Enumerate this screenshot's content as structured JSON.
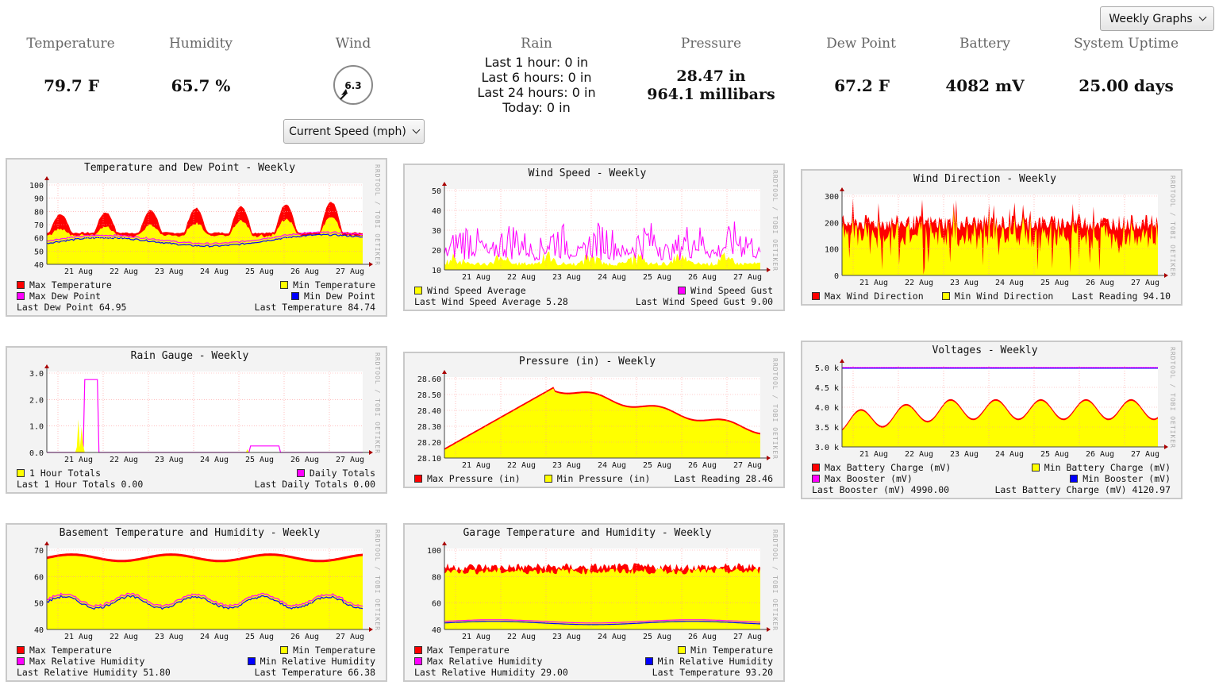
{
  "header": {
    "graphs_select": "Weekly Graphs",
    "wind_select": "Current Speed (mph)"
  },
  "stats": {
    "temperature": {
      "label": "Temperature",
      "value": "79.7 F"
    },
    "humidity": {
      "label": "Humidity",
      "value": "65.7 %"
    },
    "wind": {
      "label": "Wind",
      "value": "6.3"
    },
    "rain": {
      "label": "Rain",
      "lines": [
        "Last 1 hour: 0 in",
        "Last 6 hours: 0 in",
        "Last 24 hours: 0 in",
        "Today: 0 in"
      ]
    },
    "pressure": {
      "label": "Pressure",
      "lines": [
        "28.47 in",
        "964.1 millibars"
      ]
    },
    "dew_point": {
      "label": "Dew Point",
      "value": "67.2 F"
    },
    "battery": {
      "label": "Battery",
      "value": "4082 mV"
    },
    "uptime": {
      "label": "System Uptime",
      "value": "25.00 days"
    }
  },
  "colors": {
    "red": "#ff0000",
    "yellow": "#ffff00",
    "magenta": "#ff00ff",
    "blue": "#0000ff",
    "grid": "#ff9999"
  },
  "x_ticks": [
    "21 Aug",
    "22 Aug",
    "23 Aug",
    "24 Aug",
    "25 Aug",
    "26 Aug",
    "27 Aug"
  ],
  "watermark": "RRDTOOL / TOBI OETIKER",
  "graphs": [
    {
      "id": "temp",
      "title": "Temperature and Dew Point - Weekly",
      "y_ticks": [
        "100",
        "90",
        "80",
        "70",
        "60",
        "50",
        "40"
      ],
      "legend": [
        [
          {
            "c": "red",
            "t": "Max Temperature"
          },
          {
            "c": "yellow",
            "t": "Min Temperature"
          }
        ],
        [
          {
            "c": "magenta",
            "t": "Max Dew Point"
          },
          {
            "c": "blue",
            "t": "Min Dew Point"
          }
        ],
        [
          {
            "t": "Last Dew Point 64.95"
          },
          {
            "t": "Last Temperature 84.74"
          }
        ]
      ]
    },
    {
      "id": "windspeed",
      "title": "Wind Speed - Weekly",
      "y_ticks": [
        "50",
        "40",
        "30",
        "20",
        "10"
      ],
      "legend": [
        [
          {
            "c": "yellow",
            "t": "Wind Speed Average"
          },
          {
            "c": "magenta",
            "t": "Wind Speed Gust"
          }
        ],
        [
          {
            "t": "Last Wind Speed Average 5.28"
          },
          {
            "t": "Last Wind Speed Gust 9.00"
          }
        ]
      ]
    },
    {
      "id": "winddir",
      "title": "Wind Direction - Weekly",
      "y_ticks": [
        "300",
        "200",
        "100",
        "0"
      ],
      "legend": [
        [
          {
            "c": "red",
            "t": "Max Wind Direction"
          },
          {
            "c": "yellow",
            "t": "Min Wind Direction"
          },
          {
            "t": "Last Reading 94.10"
          }
        ]
      ]
    },
    {
      "id": "rain",
      "title": "Rain Gauge - Weekly",
      "y_ticks": [
        "3.0",
        "2.0",
        "1.0",
        "0.0"
      ],
      "legend": [
        [
          {
            "c": "yellow",
            "t": "1 Hour Totals"
          },
          {
            "c": "magenta",
            "t": "Daily Totals"
          }
        ],
        [
          {
            "t": "Last 1 Hour Totals 0.00"
          },
          {
            "t": "Last Daily Totals 0.00"
          }
        ]
      ]
    },
    {
      "id": "pressure",
      "title": "Pressure (in) - Weekly",
      "y_ticks": [
        "28.60",
        "28.50",
        "28.40",
        "28.30",
        "28.20",
        "28.10"
      ],
      "legend": [
        [
          {
            "c": "red",
            "t": "Max Pressure (in)"
          },
          {
            "c": "yellow",
            "t": "Min Pressure (in)"
          },
          {
            "t": "Last Reading 28.46"
          }
        ]
      ]
    },
    {
      "id": "voltages",
      "title": "Voltages - Weekly",
      "y_ticks": [
        "5.0 k",
        "4.5 k",
        "4.0 k",
        "3.5 k",
        "3.0 k"
      ],
      "legend": [
        [
          {
            "c": "red",
            "t": "Max Battery Charge (mV)"
          },
          {
            "c": "yellow",
            "t": "Min Battery Charge (mV)"
          }
        ],
        [
          {
            "c": "magenta",
            "t": "Max Booster (mV)"
          },
          {
            "c": "blue",
            "t": "Min Booster (mV)"
          }
        ],
        [
          {
            "t": "Last Booster (mV) 4990.00"
          },
          {
            "t": "Last Battery Charge (mV) 4120.97"
          }
        ]
      ]
    },
    {
      "id": "basement",
      "title": "Basement Temperature and Humidity - Weekly",
      "y_ticks": [
        "70",
        "60",
        "50",
        "40"
      ],
      "legend": [
        [
          {
            "c": "red",
            "t": "Max Temperature"
          },
          {
            "c": "yellow",
            "t": "Min Temperature"
          }
        ],
        [
          {
            "c": "magenta",
            "t": "Max Relative Humidity"
          },
          {
            "c": "blue",
            "t": "Min Relative Humidity"
          }
        ],
        [
          {
            "t": "Last Relative Humidity 51.80"
          },
          {
            "t": "Last Temperature 66.38"
          }
        ]
      ]
    },
    {
      "id": "garage",
      "title": "Garage Temperature and Humidity - Weekly",
      "y_ticks": [
        "100",
        "80",
        "60",
        "40"
      ],
      "legend": [
        [
          {
            "c": "red",
            "t": "Max Temperature"
          },
          {
            "c": "yellow",
            "t": "Min Temperature"
          }
        ],
        [
          {
            "c": "magenta",
            "t": "Max Relative Humidity"
          },
          {
            "c": "blue",
            "t": "Min Relative Humidity"
          }
        ],
        [
          {
            "t": "Last Relative Humidity 29.00"
          },
          {
            "t": "Last Temperature 93.20"
          }
        ]
      ]
    }
  ]
}
